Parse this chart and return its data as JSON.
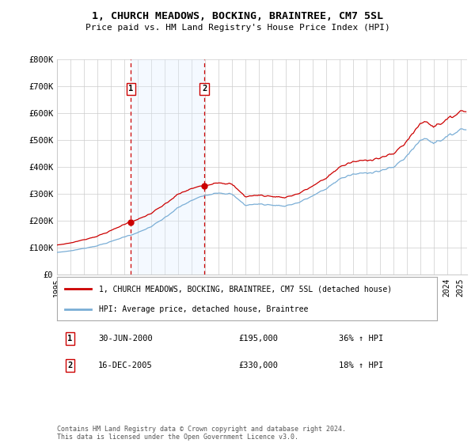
{
  "title": "1, CHURCH MEADOWS, BOCKING, BRAINTREE, CM7 5SL",
  "subtitle": "Price paid vs. HM Land Registry's House Price Index (HPI)",
  "legend_line1": "1, CHURCH MEADOWS, BOCKING, BRAINTREE, CM7 5SL (detached house)",
  "legend_line2": "HPI: Average price, detached house, Braintree",
  "transaction1_date": "30-JUN-2000",
  "transaction1_price": "£195,000",
  "transaction1_hpi": "36% ↑ HPI",
  "transaction2_date": "16-DEC-2005",
  "transaction2_price": "£330,000",
  "transaction2_hpi": "18% ↑ HPI",
  "footnote": "Contains HM Land Registry data © Crown copyright and database right 2024.\nThis data is licensed under the Open Government Licence v3.0.",
  "ylim": [
    0,
    800000
  ],
  "yticks": [
    0,
    100000,
    200000,
    300000,
    400000,
    500000,
    600000,
    700000,
    800000
  ],
  "ytick_labels": [
    "£0",
    "£100K",
    "£200K",
    "£300K",
    "£400K",
    "£500K",
    "£600K",
    "£700K",
    "£800K"
  ],
  "red_color": "#cc0000",
  "blue_color": "#7aaed6",
  "dashed_color": "#cc0000",
  "shade_color": "#ddeeff",
  "background_color": "#ffffff",
  "grid_color": "#cccccc",
  "trans1_year": 2000.5,
  "trans2_year": 2005.96,
  "trans1_value": 195000,
  "trans2_value": 330000,
  "xmin": 1995.0,
  "xmax": 2025.5
}
